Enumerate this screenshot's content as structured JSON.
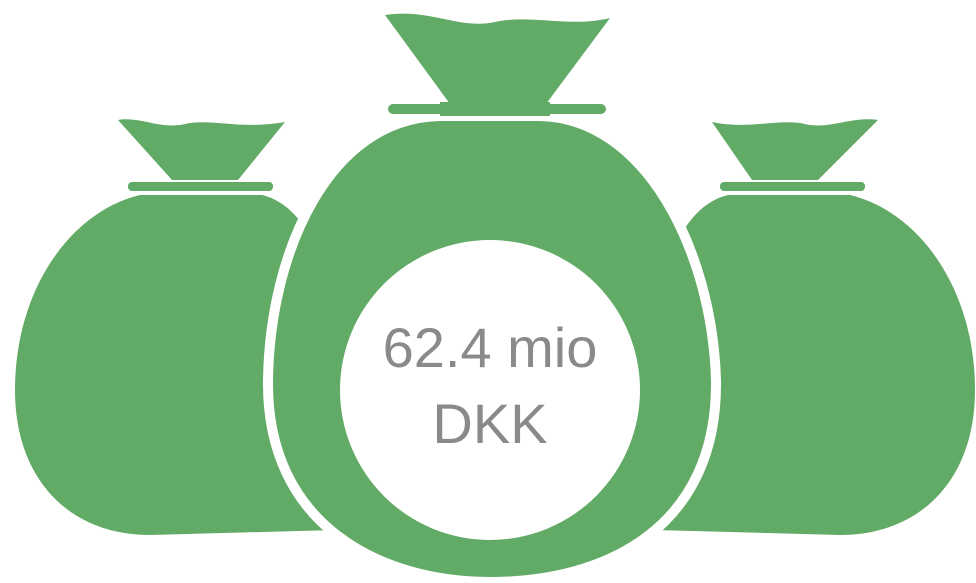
{
  "amount": "62.4 mio",
  "currency": "DKK"
}
